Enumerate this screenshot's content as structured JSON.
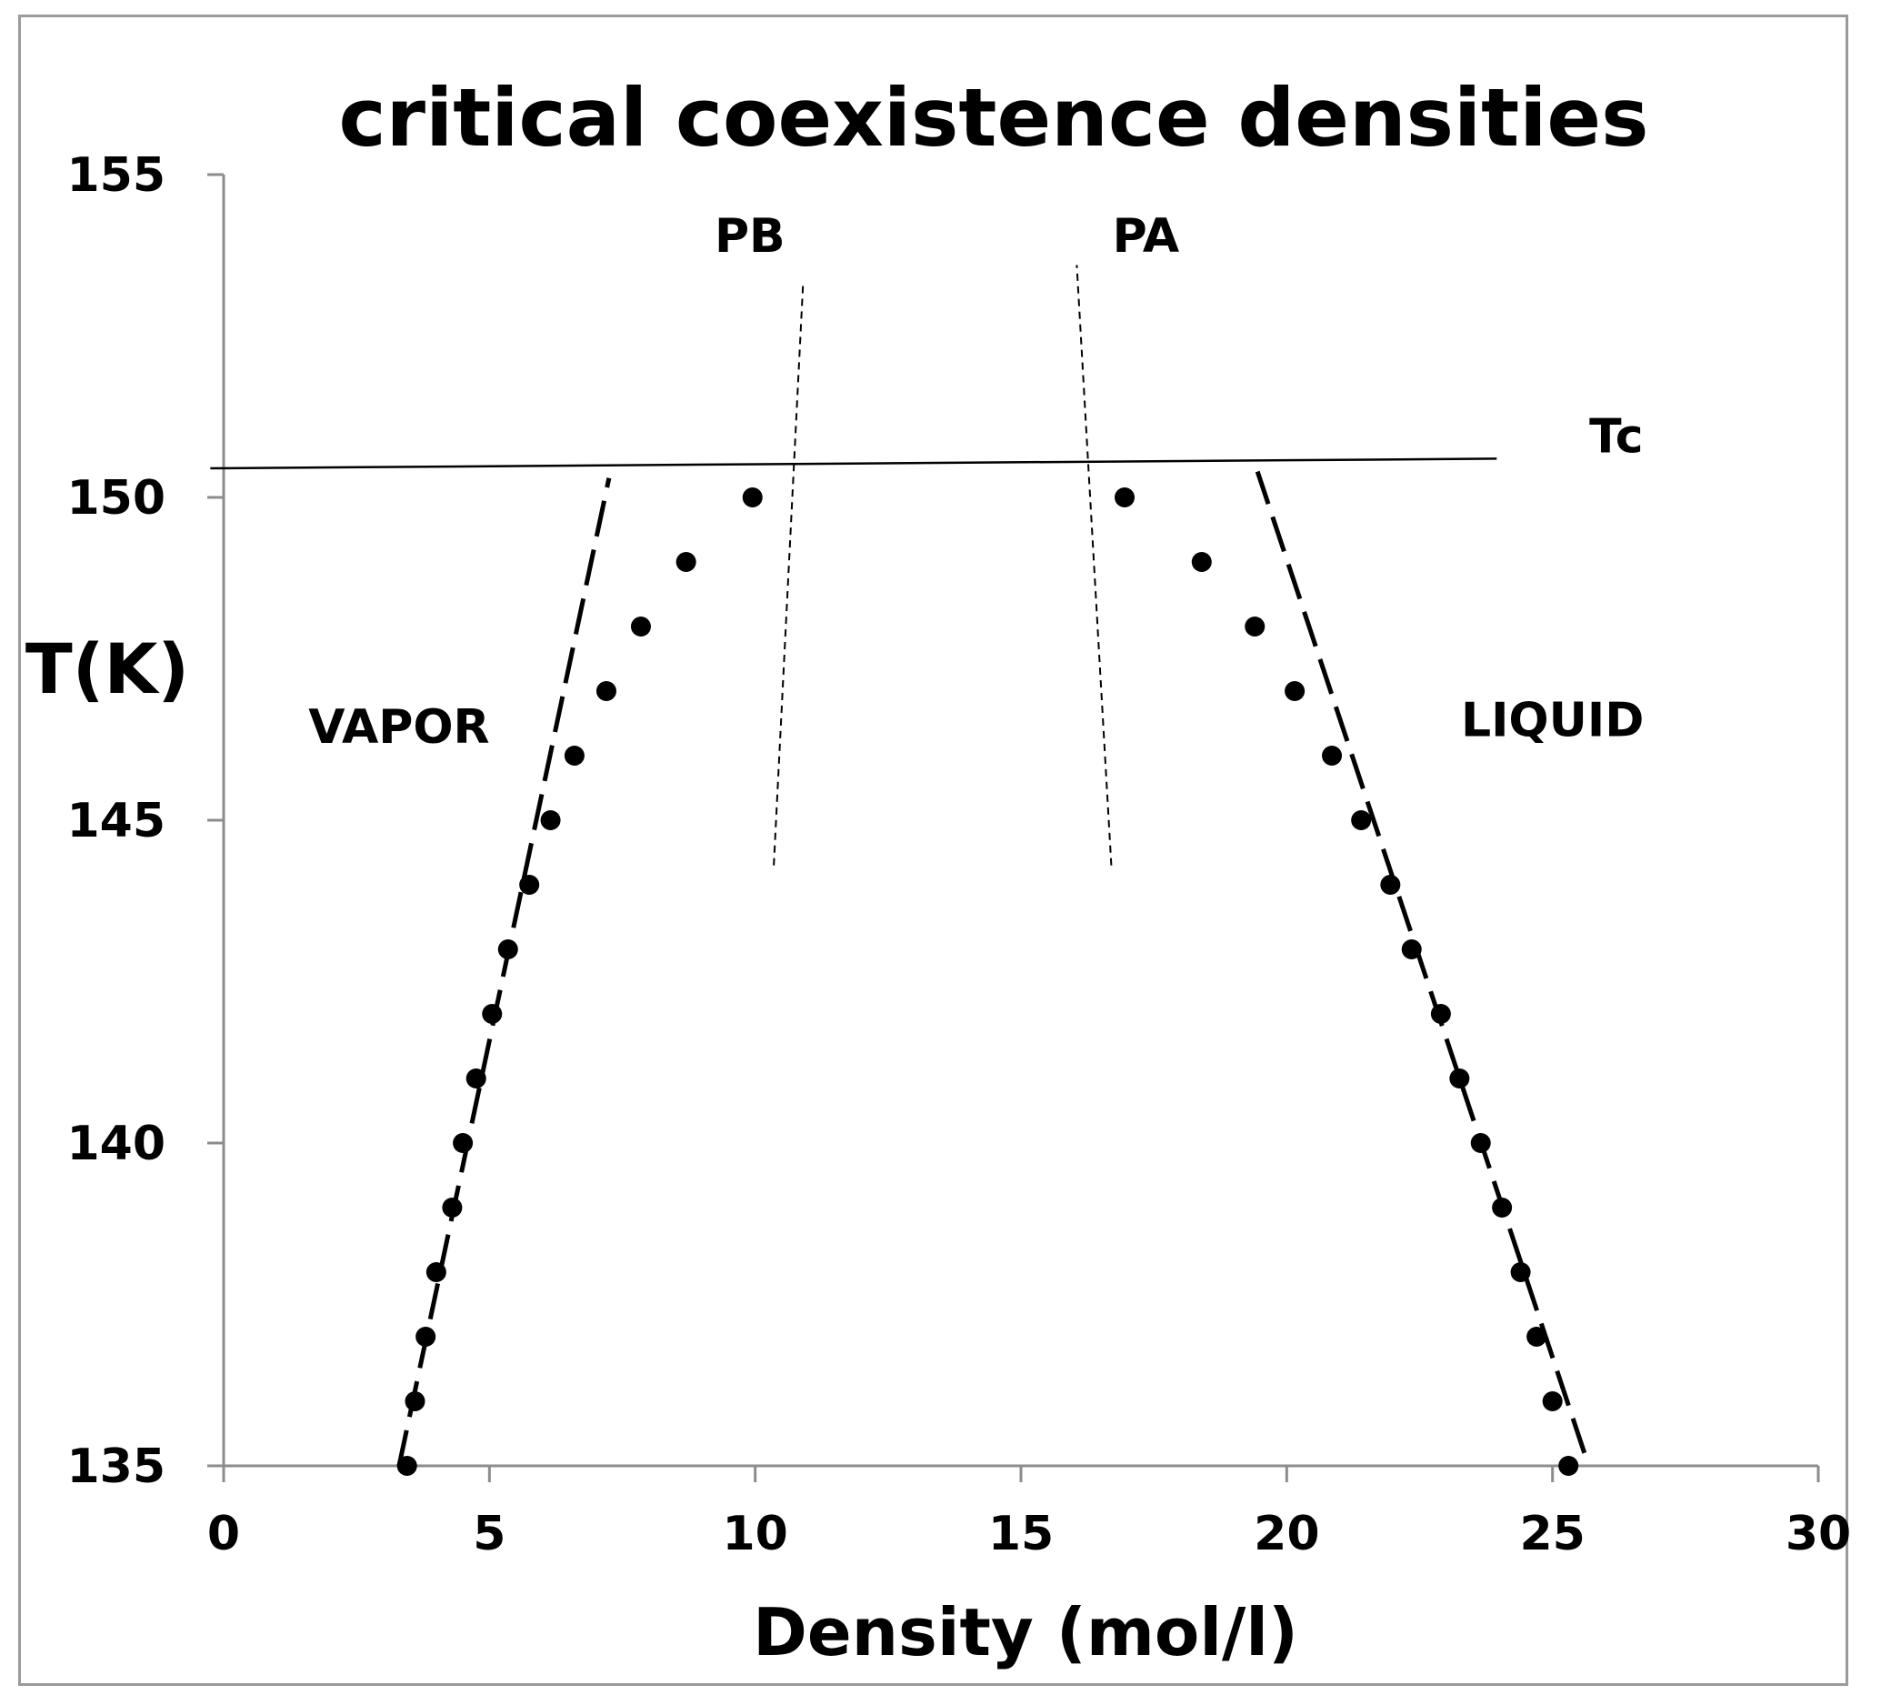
{
  "chart_data": {
    "type": "scatter",
    "title": "critical coexistence densities",
    "xlabel": "Density (mol/l)",
    "ylabel": "T(K)",
    "xlim": [
      0,
      30
    ],
    "ylim": [
      135,
      155
    ],
    "xticks": [
      0,
      5,
      10,
      15,
      20,
      25,
      30
    ],
    "yticks": [
      135,
      140,
      145,
      150,
      155
    ],
    "grid": false,
    "series": [
      {
        "name": "vapor",
        "points": [
          {
            "x": 3.45,
            "y": 135
          },
          {
            "x": 3.6,
            "y": 136
          },
          {
            "x": 3.8,
            "y": 137
          },
          {
            "x": 4.0,
            "y": 138
          },
          {
            "x": 4.3,
            "y": 139
          },
          {
            "x": 4.5,
            "y": 140
          },
          {
            "x": 4.75,
            "y": 141
          },
          {
            "x": 5.05,
            "y": 142
          },
          {
            "x": 5.35,
            "y": 143
          },
          {
            "x": 5.75,
            "y": 144
          },
          {
            "x": 6.15,
            "y": 145
          },
          {
            "x": 6.6,
            "y": 146
          },
          {
            "x": 7.2,
            "y": 147
          },
          {
            "x": 7.85,
            "y": 148
          },
          {
            "x": 8.7,
            "y": 149
          },
          {
            "x": 9.95,
            "y": 150
          }
        ]
      },
      {
        "name": "liquid",
        "points": [
          {
            "x": 25.3,
            "y": 135
          },
          {
            "x": 25.0,
            "y": 136
          },
          {
            "x": 24.7,
            "y": 137
          },
          {
            "x": 24.4,
            "y": 138
          },
          {
            "x": 24.05,
            "y": 139
          },
          {
            "x": 23.65,
            "y": 140
          },
          {
            "x": 23.25,
            "y": 141
          },
          {
            "x": 22.9,
            "y": 142
          },
          {
            "x": 22.35,
            "y": 143
          },
          {
            "x": 21.95,
            "y": 144
          },
          {
            "x": 21.4,
            "y": 145
          },
          {
            "x": 20.85,
            "y": 146
          },
          {
            "x": 20.15,
            "y": 147
          },
          {
            "x": 19.4,
            "y": 148
          },
          {
            "x": 18.4,
            "y": 149
          },
          {
            "x": 16.95,
            "y": 150
          }
        ]
      }
    ],
    "lines": [
      {
        "name": "tc-line",
        "style": "solid",
        "x1": -0.25,
        "y1": 150.45,
        "x2": 23.95,
        "y2": 150.6
      },
      {
        "name": "vapor-fit",
        "style": "dashed",
        "x1": 3.3,
        "y1": 135.0,
        "x2": 7.25,
        "y2": 150.3
      },
      {
        "name": "liquid-fit",
        "style": "dashed",
        "x1": 25.6,
        "y1": 135.2,
        "x2": 19.45,
        "y2": 150.4
      },
      {
        "name": "pb-line",
        "style": "dotted",
        "x1": 10.35,
        "y1": 144.3,
        "x2": 10.9,
        "y2": 153.3
      },
      {
        "name": "pa-line",
        "style": "dotted",
        "x1": 16.7,
        "y1": 144.3,
        "x2": 16.05,
        "y2": 153.6
      }
    ],
    "annotations": [
      {
        "name": "pb-label",
        "text": "PB",
        "x": 9.9,
        "y": 153.8
      },
      {
        "name": "pa-label",
        "text": "PA",
        "x": 17.35,
        "y": 153.8
      },
      {
        "name": "tc-label",
        "text": "Tc",
        "x": 26.2,
        "y": 150.7
      },
      {
        "name": "vapor-label",
        "text": "VAPOR",
        "x": 3.3,
        "y": 146.2
      },
      {
        "name": "liquid-label",
        "text": "LIQUID",
        "x": 25.0,
        "y": 146.3
      }
    ]
  }
}
